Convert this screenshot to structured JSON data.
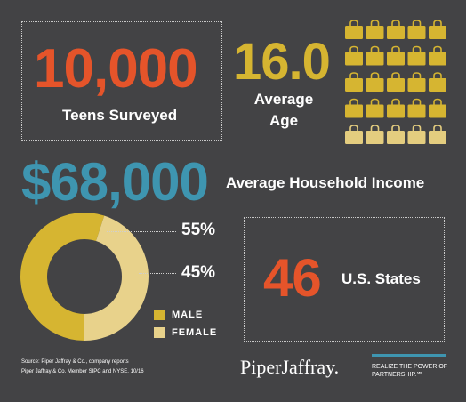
{
  "teens": {
    "value": "10,000",
    "label": "Teens Surveyed"
  },
  "age": {
    "value": "16.0",
    "label_line1": "Average",
    "label_line2": "Age"
  },
  "bags": {
    "icon": "shopping-bag-icon",
    "total": 25,
    "highlighted": 20,
    "color_dark": "#d6b531",
    "color_light": "#e4cd7f"
  },
  "income": {
    "value": "$68,000",
    "label": "Average Household Income"
  },
  "states": {
    "value": "46",
    "label": "U.S. States"
  },
  "gender": {
    "male_pct": "55%",
    "female_pct": "45%",
    "male_label": "MALE",
    "female_label": "FEMALE",
    "male_color": "#d6b531",
    "female_color": "#e8d28b"
  },
  "chart_data": {
    "type": "pie",
    "categories": [
      "MALE",
      "FEMALE"
    ],
    "values": [
      55,
      45
    ]
  },
  "footer": {
    "source": "Source: Piper Jaffray & Co., company reports",
    "member": "Piper Jaffray & Co. Member SIPC and NYSE. 10/16",
    "logo": "PiperJaffray.",
    "tag_line1": "REALIZE THE POWER OF",
    "tag_line2": "PARTNERSHIP.℠"
  },
  "colors": {
    "background": "#434345",
    "orange": "#e5542a",
    "gold": "#d6b531",
    "blue": "#3e95b0"
  }
}
